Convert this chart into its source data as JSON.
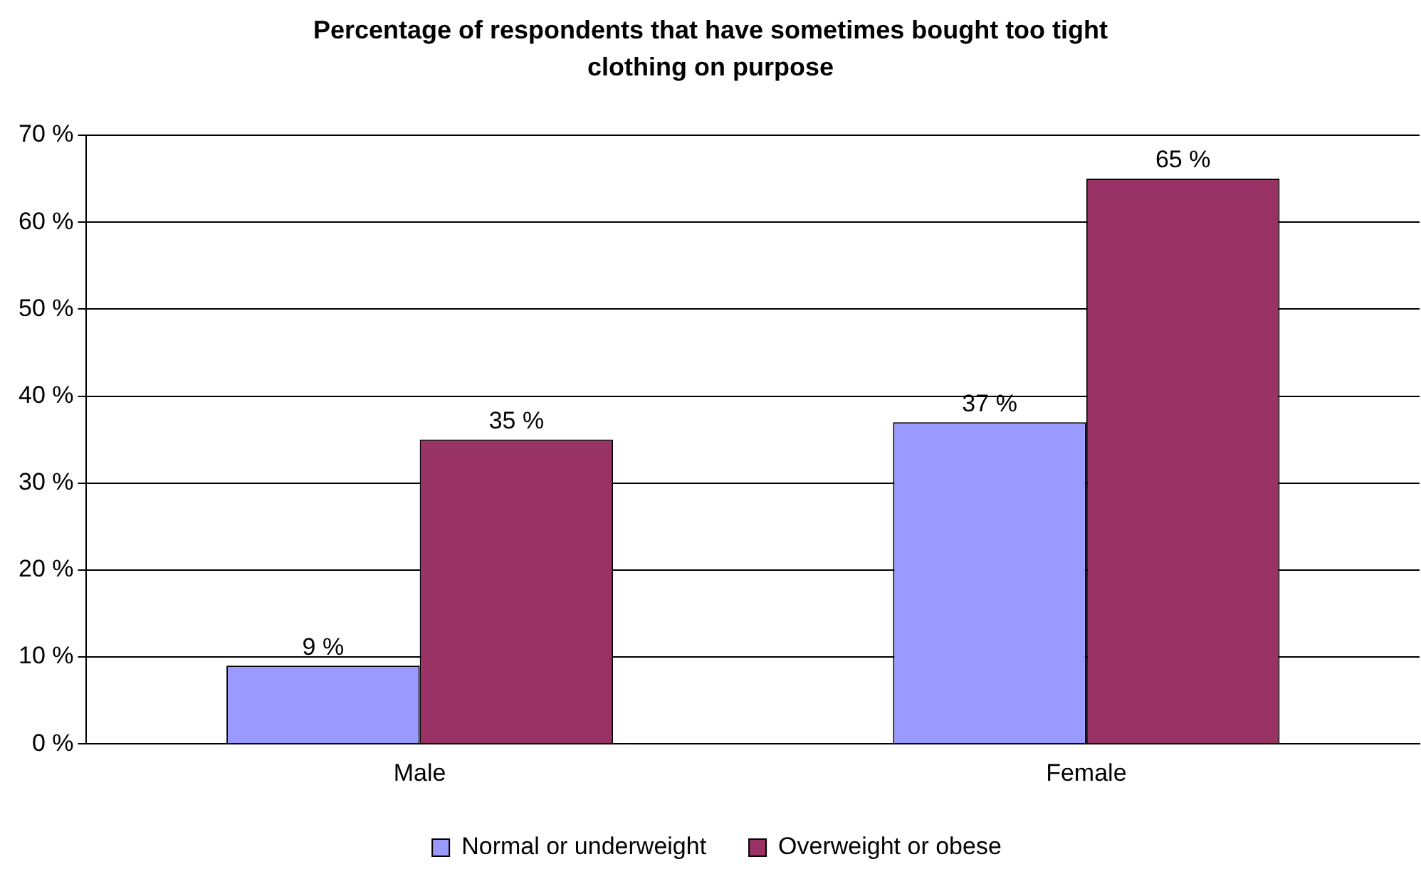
{
  "chart_data": {
    "type": "bar",
    "title": "Percentage of respondents that have sometimes bought too tight clothing on purpose",
    "categories": [
      "Male",
      "Female"
    ],
    "series": [
      {
        "name": "Normal or underweight",
        "color": "#9999ff",
        "values": [
          9,
          37
        ],
        "value_labels": [
          "9 %",
          "37 %"
        ]
      },
      {
        "name": "Overweight or obese",
        "color": "#993366",
        "values": [
          35,
          65
        ],
        "value_labels": [
          "35 %",
          "65 %"
        ]
      }
    ],
    "ylim": [
      0,
      70
    ],
    "yticks": [
      {
        "value": 0,
        "label": "0 %"
      },
      {
        "value": 10,
        "label": "10 %"
      },
      {
        "value": 20,
        "label": "20 %"
      },
      {
        "value": 30,
        "label": "30 %"
      },
      {
        "value": 40,
        "label": "40 %"
      },
      {
        "value": 50,
        "label": "50 %"
      },
      {
        "value": 60,
        "label": "60 %"
      },
      {
        "value": 70,
        "label": "70 %"
      }
    ],
    "grid": "y",
    "legend": "bottom"
  }
}
